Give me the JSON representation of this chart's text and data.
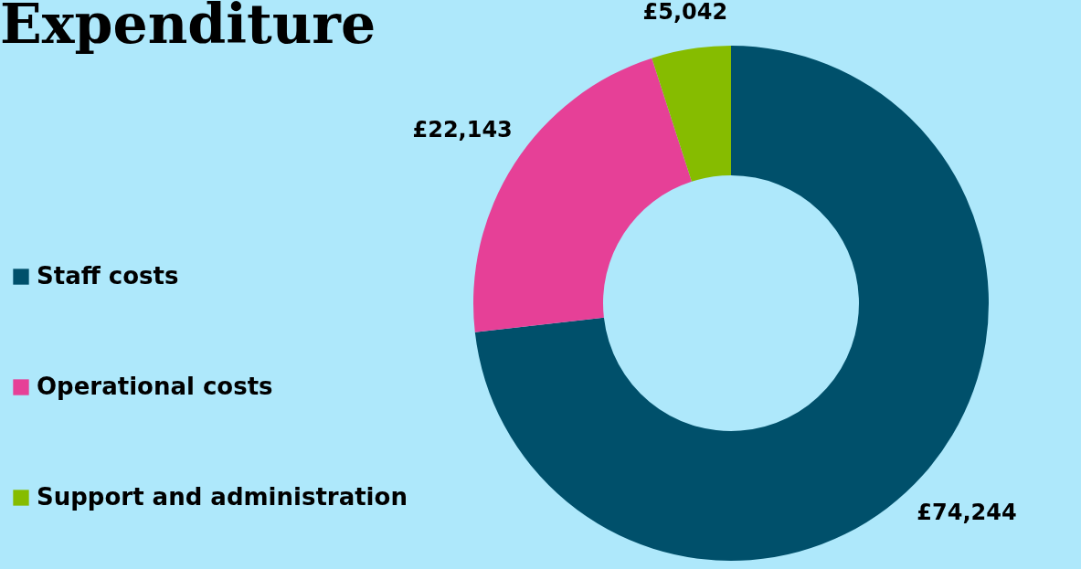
{
  "chart_data": {
    "type": "donut",
    "title": "Expenditure",
    "categories": [
      "Staff costs",
      "Operational costs",
      "Support and administration"
    ],
    "values": [
      74244,
      22143,
      5042
    ],
    "colors": [
      "#00506b",
      "#e64097",
      "#86bc00"
    ],
    "value_labels": [
      "£74,244",
      "£22,143",
      "£5,042"
    ],
    "legend": "left"
  }
}
